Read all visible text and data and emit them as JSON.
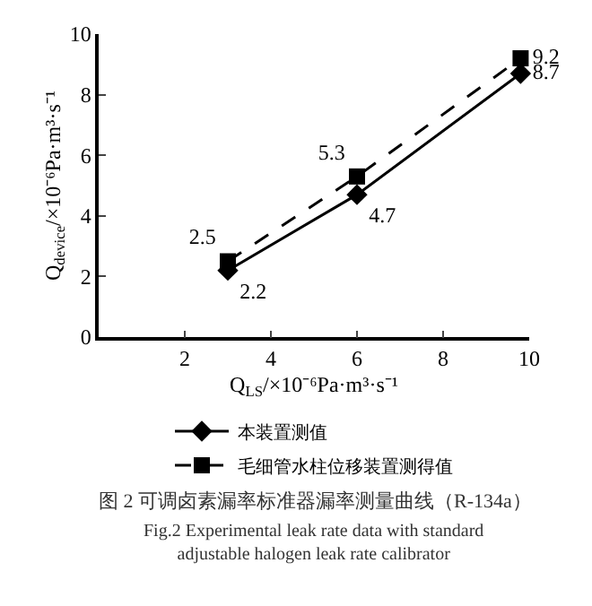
{
  "chart_data": {
    "type": "line",
    "xlabel": "Q$_{LS}$/×10⁻⁶Pa·m³·s⁻¹",
    "ylabel": "Q$_{device}$/×10⁻⁶Pa·m³·s⁻¹",
    "x": [
      3,
      6,
      9.8
    ],
    "series": [
      {
        "name": "本装置测值",
        "color": "#000000",
        "values": [
          2.2,
          4.7,
          8.7
        ],
        "marker": "diamond",
        "line_style": "solid"
      },
      {
        "name": "毛细管水柱位移装置测得值",
        "color": "#000000",
        "values": [
          2.5,
          5.3,
          9.2
        ],
        "marker": "square",
        "line_style": "dashed"
      }
    ],
    "xlim": [
      0,
      10
    ],
    "xticks": [
      2,
      4,
      6,
      8,
      10
    ],
    "ylim": [
      0,
      10
    ],
    "yticks": [
      0,
      2,
      4,
      6,
      8,
      10
    ],
    "data_labels": true,
    "legend": "bottom",
    "annotations": [
      "图 2 可调卤素漏率标准器漏率测量曲线（R-134a）",
      "Fig.2 Experimental leak rate data with standard adjustable halogen leak rate calibrator"
    ]
  }
}
